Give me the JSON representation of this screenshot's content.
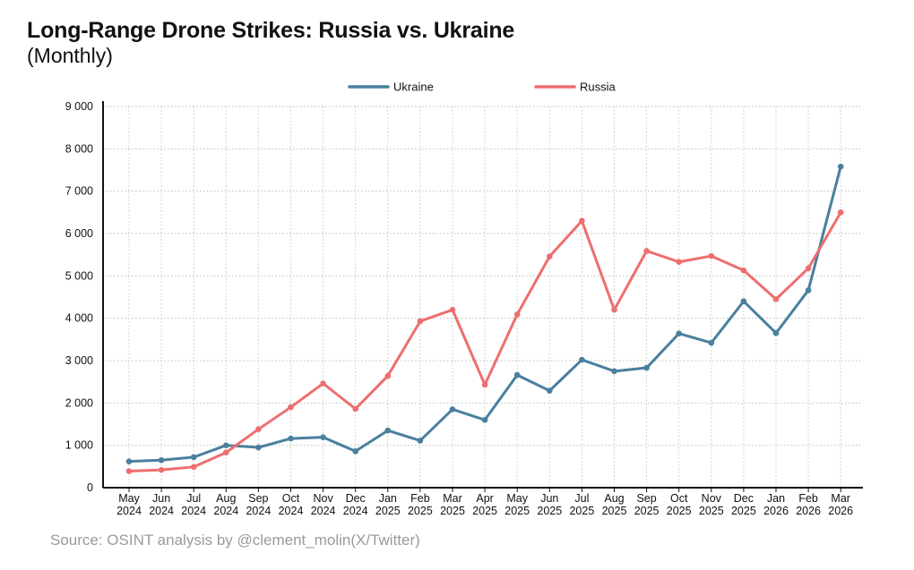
{
  "header": {
    "title": "Long-Range Drone Strikes: Russia vs. Ukraine",
    "subtitle": "(Monthly)"
  },
  "footer": {
    "source": "Source: OSINT analysis by @clement_molin(X/Twitter)"
  },
  "chart_data": {
    "type": "line",
    "title": "Long-Range Drone Strikes: Russia vs. Ukraine",
    "subtitle": "(Monthly)",
    "xlabel": "",
    "ylabel": "",
    "ylim": [
      0,
      9000
    ],
    "yticks": [
      0,
      1000,
      2000,
      3000,
      4000,
      5000,
      6000,
      7000,
      8000,
      9000
    ],
    "ytick_labels": [
      "0",
      "1 000",
      "2 000",
      "3 000",
      "4 000",
      "5 000",
      "6 000",
      "7 000",
      "8 000",
      "9 000"
    ],
    "grid": true,
    "legend_position": "top-center",
    "categories": [
      [
        "May",
        "2024"
      ],
      [
        "Jun",
        "2024"
      ],
      [
        "Jul",
        "2024"
      ],
      [
        "Aug",
        "2024"
      ],
      [
        "Sep",
        "2024"
      ],
      [
        "Oct",
        "2024"
      ],
      [
        "Nov",
        "2024"
      ],
      [
        "Dec",
        "2024"
      ],
      [
        "Jan",
        "2025"
      ],
      [
        "Feb",
        "2025"
      ],
      [
        "Mar",
        "2025"
      ],
      [
        "Apr",
        "2025"
      ],
      [
        "May",
        "2025"
      ],
      [
        "Jun",
        "2025"
      ],
      [
        "Jul",
        "2025"
      ],
      [
        "Aug",
        "2025"
      ],
      [
        "Sep",
        "2025"
      ],
      [
        "Oct",
        "2025"
      ],
      [
        "Nov",
        "2025"
      ],
      [
        "Dec",
        "2025"
      ],
      [
        "Jan",
        "2026"
      ],
      [
        "Feb",
        "2026"
      ],
      [
        "Mar",
        "2026"
      ]
    ],
    "series": [
      {
        "name": "Ukraine",
        "color": "#4a7f9e",
        "values": [
          620,
          650,
          720,
          1000,
          950,
          1160,
          1190,
          860,
          1350,
          1110,
          1850,
          1600,
          2660,
          2290,
          3020,
          2750,
          2830,
          3640,
          3420,
          4400,
          3650,
          4660,
          7580
        ]
      },
      {
        "name": "Russia",
        "color": "#ee6e6e",
        "values": [
          390,
          420,
          490,
          830,
          1380,
          1900,
          2460,
          1860,
          2640,
          3930,
          4200,
          2430,
          4090,
          5460,
          6300,
          4200,
          5590,
          5330,
          5470,
          5130,
          4450,
          5180,
          6500
        ]
      }
    ]
  }
}
